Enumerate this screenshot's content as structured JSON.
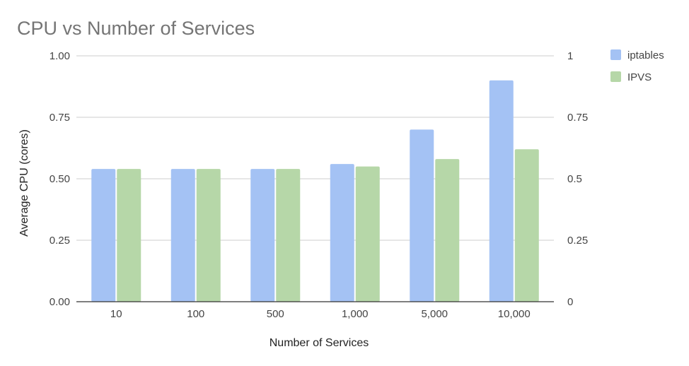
{
  "chart_data": {
    "type": "bar",
    "title": "CPU vs Number of Services",
    "xlabel": "Number of Services",
    "ylabel": "Average CPU (cores)",
    "categories": [
      "10",
      "100",
      "500",
      "1,000",
      "5,000",
      "10,000"
    ],
    "series": [
      {
        "name": "iptables",
        "color": "#a4c2f4",
        "values": [
          0.54,
          0.54,
          0.54,
          0.56,
          0.7,
          0.9
        ]
      },
      {
        "name": "IPVS",
        "color": "#b6d7a8",
        "values": [
          0.54,
          0.54,
          0.54,
          0.55,
          0.58,
          0.62
        ]
      }
    ],
    "ylim": [
      0,
      1
    ],
    "y_ticks_left": [
      "0.00",
      "0.25",
      "0.50",
      "0.75",
      "1.00"
    ],
    "y_ticks_right": [
      "0",
      "0.25",
      "0.5",
      "0.75",
      "1"
    ],
    "grid": true,
    "legend": "top-right"
  }
}
